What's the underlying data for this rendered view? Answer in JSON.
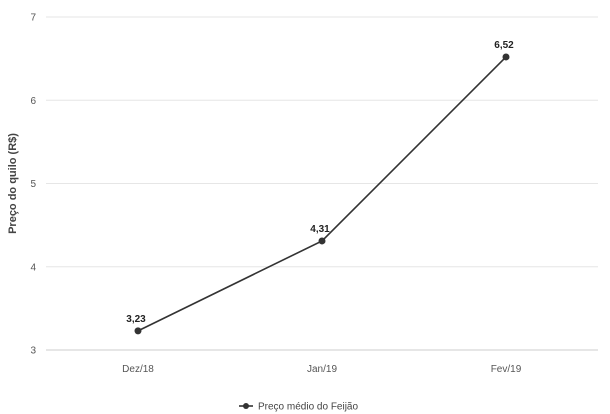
{
  "chart_data": {
    "type": "line",
    "title": "",
    "xlabel": "",
    "ylabel": "Preço do quilo (R$)",
    "categories": [
      "Dez/18",
      "Jan/19",
      "Fev/19"
    ],
    "series": [
      {
        "name": "Preço médio do Feijão",
        "values": [
          3.23,
          4.31,
          6.52
        ],
        "labels": [
          "3,23",
          "4,31",
          "6,52"
        ],
        "color": "#333333"
      }
    ],
    "ylim": [
      3,
      7
    ],
    "yticks": [
      "3",
      "4",
      "5",
      "6",
      "7"
    ],
    "grid": true,
    "legend": "bottom-center"
  }
}
